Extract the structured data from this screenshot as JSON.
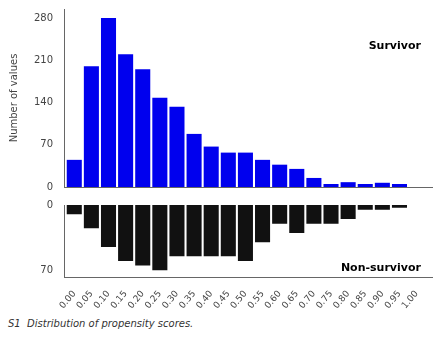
{
  "chart_data": [
    {
      "type": "bar",
      "x": [
        0.0,
        0.05,
        0.1,
        0.15,
        0.2,
        0.25,
        0.3,
        0.35,
        0.4,
        0.45,
        0.5,
        0.55,
        0.6,
        0.65,
        0.7,
        0.75,
        0.8,
        0.85,
        0.9,
        0.95
      ],
      "values": [
        45,
        200,
        280,
        220,
        195,
        148,
        133,
        88,
        67,
        57,
        57,
        45,
        37,
        30,
        15,
        5,
        8,
        5,
        7,
        5
      ],
      "color": "#0000EE",
      "ylabel": "Number of values",
      "xlim": [
        -0.03,
        1.045
      ],
      "ylim": [
        0,
        295
      ],
      "yticks": [
        0,
        70,
        140,
        210,
        280
      ],
      "tick_labels": "y",
      "grid": false,
      "annotations": [
        "Survivor"
      ]
    },
    {
      "type": "bar",
      "x": [
        0.0,
        0.05,
        0.1,
        0.15,
        0.2,
        0.25,
        0.3,
        0.35,
        0.4,
        0.45,
        0.5,
        0.55,
        0.6,
        0.65,
        0.7,
        0.75,
        0.8,
        0.85,
        0.9,
        0.95
      ],
      "values": [
        10,
        25,
        45,
        60,
        65,
        70,
        55,
        55,
        55,
        55,
        60,
        40,
        20,
        30,
        20,
        20,
        15,
        5,
        5,
        3
      ],
      "color": "#111111",
      "xlim": [
        -0.03,
        1.045
      ],
      "xticks": [
        {
          "value": 0.0,
          "label": "0.00"
        },
        0.05,
        {
          "value": 0.1,
          "label": "0.10"
        },
        0.15,
        {
          "value": 0.2,
          "label": "0.20"
        },
        0.25,
        {
          "value": 0.3,
          "label": "0.30"
        },
        0.35,
        {
          "value": 0.4,
          "label": "0.40"
        },
        0.45,
        {
          "value": 0.5,
          "label": "0.50"
        },
        0.55,
        {
          "value": 0.6,
          "label": "0.60"
        },
        0.65,
        {
          "value": 0.7,
          "label": "0.70"
        },
        0.75,
        {
          "value": 0.8,
          "label": "0.80"
        },
        0.85,
        {
          "value": 0.9,
          "label": "0.90"
        },
        0.95,
        {
          "value": 1.0,
          "label": "1.00"
        }
      ],
      "ylim": [
        78,
        0
      ],
      "yticks": [
        0,
        70
      ],
      "grid": false,
      "annotations": [
        "Non-survivor",
        "S1  Distribution of propensity scores."
      ]
    }
  ]
}
